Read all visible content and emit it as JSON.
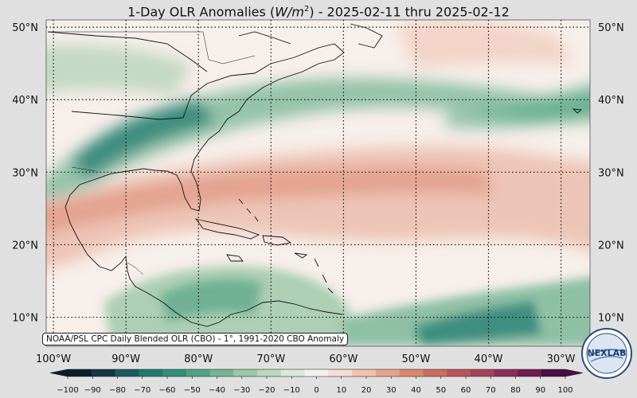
{
  "title": {
    "prefix": "1-Day OLR Anomalies (",
    "unit_base": "W/m",
    "unit_exp": "2",
    "suffix": ") - 2025-02-11 thru 2025-02-12"
  },
  "map": {
    "lon_range": [
      -101,
      -26
    ],
    "lat_range": [
      6,
      51
    ],
    "lat_labels": [
      "10°N",
      "20°N",
      "30°N",
      "40°N",
      "50°N"
    ],
    "lat_values": [
      10,
      20,
      30,
      40,
      50
    ],
    "lon_labels": [
      "100°W",
      "90°W",
      "80°W",
      "70°W",
      "60°W",
      "50°W",
      "40°W",
      "30°W"
    ],
    "lon_values": [
      -100,
      -90,
      -80,
      -70,
      -60,
      -50,
      -40,
      -30
    ],
    "grid": "dotted",
    "anomaly_regions": [
      {
        "name": "enhanced-convection-midlat-band",
        "value": -60
      },
      {
        "name": "suppressed-convection-subtropical-band",
        "value": 30
      },
      {
        "name": "enhanced-convection-caribbean",
        "value": -40
      },
      {
        "name": "enhanced-convection-tropical-atlantic",
        "value": -70
      }
    ]
  },
  "source_note": "NOAA/PSL CPC Daily Blended OLR (CBO) - 1°, 1991-2020 CBO Anomaly",
  "logo": {
    "text": "NEXLAB"
  },
  "colorbar": {
    "min": -100,
    "max": 100,
    "ticks": [
      "−100",
      "−90",
      "−80",
      "−70",
      "−60",
      "−50",
      "−40",
      "−30",
      "−20",
      "−10",
      "0",
      "10",
      "20",
      "30",
      "40",
      "50",
      "60",
      "70",
      "80",
      "90",
      "100"
    ],
    "colors": [
      "#0b1e2e",
      "#14384a",
      "#1b5a62",
      "#1f7a72",
      "#2f8f7a",
      "#4fa284",
      "#74b493",
      "#9ac7a6",
      "#bcd7bb",
      "#dbe8d8",
      "#f2f2ee",
      "#f6ddd2",
      "#efc2b0",
      "#e6a38c",
      "#da8770",
      "#cc6c60",
      "#bb5559",
      "#a8405a",
      "#8f2c59",
      "#6f1c55",
      "#4a0e45"
    ]
  }
}
